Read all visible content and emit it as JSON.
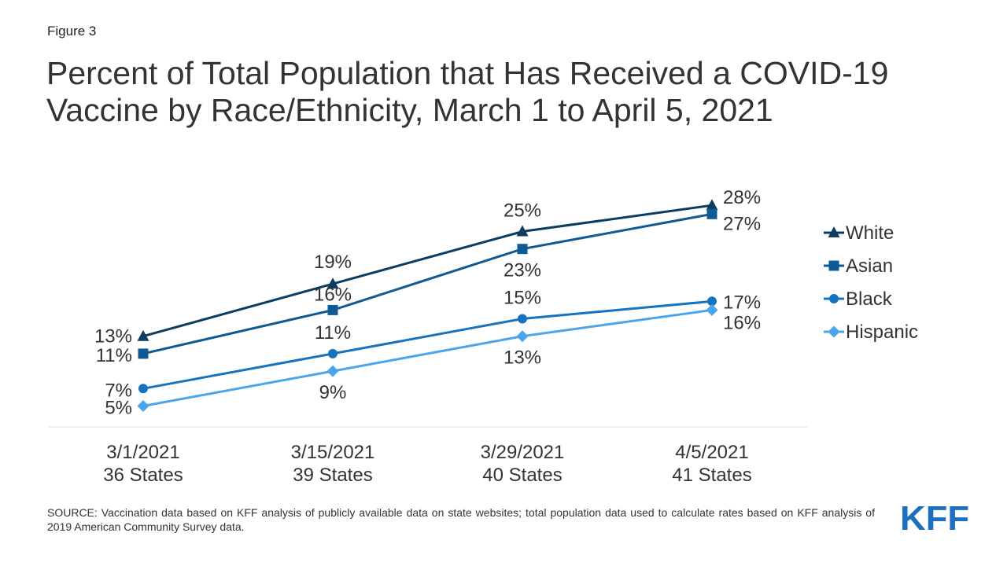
{
  "figure_label": "Figure 3",
  "title_lines": [
    "Percent of Total Population that Has Received a COVID-19",
    "Vaccine by Race/Ethnicity, March 1 to April 5, 2021"
  ],
  "source": "SOURCE: Vaccination data based on KFF analysis of publicly available data on state websites; total population data used to calculate rates based on KFF analysis of 2019 American Community Survey data.",
  "logo_text": "KFF",
  "colors": {
    "White": "#0b3c61",
    "Asian": "#0d5a95",
    "Black": "#1673c0",
    "Hispanic": "#4aa5ea",
    "logo": "#1d6fc0"
  },
  "chart_data": {
    "type": "line",
    "x": [
      "3/1/2021",
      "3/15/2021",
      "3/29/2021",
      "4/5/2021"
    ],
    "x_sublabels": [
      "36 States",
      "39 States",
      "40 States",
      "41 States"
    ],
    "series": [
      {
        "name": "White",
        "marker": "triangle",
        "values": [
          13,
          19,
          25,
          28
        ],
        "labels": [
          "13%",
          "19%",
          "25%",
          "28%"
        ]
      },
      {
        "name": "Asian",
        "marker": "square",
        "values": [
          11,
          16,
          23,
          27
        ],
        "labels": [
          "11%",
          "16%",
          "23%",
          "27%"
        ]
      },
      {
        "name": "Black",
        "marker": "circle",
        "values": [
          7,
          11,
          15,
          17
        ],
        "labels": [
          "7%",
          "11%",
          "15%",
          "17%"
        ]
      },
      {
        "name": "Hispanic",
        "marker": "diamond",
        "values": [
          5,
          9,
          13,
          16
        ],
        "labels": [
          "5%",
          "9%",
          "13%",
          "16%"
        ]
      }
    ],
    "legend_position": "right",
    "grid": false,
    "ylim": [
      0,
      30
    ]
  }
}
